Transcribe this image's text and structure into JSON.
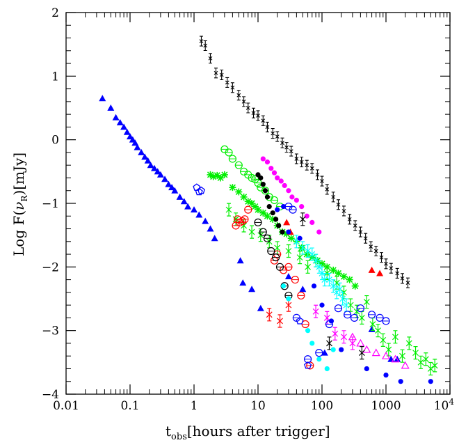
{
  "chart_data": {
    "type": "scatter",
    "xlabel": "t_obs[hours after trigger]",
    "xlabel_main": "t",
    "xlabel_sub": "obs",
    "xlabel_rest": "[hours after trigger]",
    "ylabel": "Log F(ν_R)[mJy]",
    "ylabel_pre": "Log F(",
    "ylabel_nu": "ν",
    "ylabel_sub": "R",
    "ylabel_post": ")[mJy]",
    "x_scale": "log",
    "xlim": [
      0.01,
      10000
    ],
    "ylim": [
      -4,
      2
    ],
    "x_ticks": [
      {
        "value": 0.01,
        "label": "0.01"
      },
      {
        "value": 0.1,
        "label": "0.1"
      },
      {
        "value": 1,
        "label": "1"
      },
      {
        "value": 10,
        "label": "10"
      },
      {
        "value": 100,
        "label": "100"
      },
      {
        "value": 1000,
        "label": "1000"
      },
      {
        "value": 10000,
        "label": "10",
        "sup": "4"
      }
    ],
    "y_ticks": [
      {
        "value": 2,
        "label": "2"
      },
      {
        "value": 1,
        "label": "1"
      },
      {
        "value": 0,
        "label": "0"
      },
      {
        "value": -1,
        "label": "−1"
      },
      {
        "value": -2,
        "label": "−2"
      },
      {
        "value": -3,
        "label": "−3"
      },
      {
        "value": -4,
        "label": "−4"
      }
    ],
    "grid": false,
    "series": [
      {
        "color": "#000000",
        "marker": "cross-small",
        "x": [
          1.3,
          1.5,
          1.8,
          2.2,
          2.7,
          3.3,
          4,
          5,
          6,
          7,
          8.5,
          10,
          12,
          14,
          17,
          20,
          24,
          28,
          33,
          40,
          48,
          58,
          70,
          85,
          100,
          120,
          150,
          180,
          220,
          270,
          330,
          400,
          480,
          580,
          700,
          850,
          1000,
          1200,
          1500,
          1800,
          2200
        ],
        "y": [
          1.55,
          1.48,
          1.28,
          1.05,
          1.02,
          0.9,
          0.82,
          0.7,
          0.6,
          0.5,
          0.42,
          0.38,
          0.3,
          0.2,
          0.1,
          0.05,
          -0.05,
          -0.12,
          -0.18,
          -0.3,
          -0.35,
          -0.4,
          -0.45,
          -0.55,
          -0.65,
          -0.78,
          -0.9,
          -1.02,
          -1.12,
          -1.25,
          -1.35,
          -1.45,
          -1.55,
          -1.68,
          -1.75,
          -1.85,
          -1.95,
          -2.02,
          -2.1,
          -2.18,
          -2.25
        ]
      },
      {
        "color": "#0000ff",
        "marker": "triangle",
        "x": [
          0.037,
          0.05,
          0.06,
          0.07,
          0.08,
          0.09,
          0.1,
          0.11,
          0.12,
          0.13,
          0.15,
          0.17,
          0.19,
          0.21,
          0.24,
          0.27,
          0.3,
          0.35,
          0.4,
          0.45,
          0.5,
          0.6,
          0.7,
          0.8,
          1,
          1.2,
          1.5,
          1.8,
          2.1,
          5.3,
          5.8,
          8,
          11,
          30,
          50,
          110,
          600,
          1200,
          1500
        ],
        "y": [
          0.65,
          0.5,
          0.35,
          0.27,
          0.2,
          0.12,
          0.05,
          0.0,
          -0.05,
          -0.12,
          -0.2,
          -0.27,
          -0.33,
          -0.4,
          -0.45,
          -0.5,
          -0.55,
          -0.62,
          -0.7,
          -0.75,
          -0.8,
          -0.9,
          -0.97,
          -1.05,
          -1.1,
          -1.18,
          -1.28,
          -1.4,
          -1.55,
          -1.9,
          -2.25,
          -2.35,
          -2.65,
          -2.15,
          -2.35,
          -3.35,
          -2.98,
          -3.45,
          -3.45
        ]
      },
      {
        "color": "#00ee00",
        "marker": "asterisk",
        "x": [
          1.8,
          2,
          2.3,
          2.6,
          3,
          4,
          5,
          6,
          7,
          8,
          9,
          10,
          12,
          14,
          17,
          20,
          24,
          28,
          33,
          40,
          48,
          58,
          70,
          85,
          100,
          120,
          150,
          180,
          220,
          270,
          330
        ],
        "y": [
          -0.55,
          -0.58,
          -0.56,
          -0.6,
          -0.55,
          -0.75,
          -0.82,
          -0.9,
          -0.97,
          -1.0,
          -1.05,
          -1.1,
          -1.15,
          -1.2,
          -1.25,
          -1.35,
          -1.45,
          -1.48,
          -1.55,
          -1.6,
          -1.7,
          -1.8,
          -1.85,
          -1.9,
          -1.95,
          -2.0,
          -2.05,
          -2.1,
          -2.15,
          -2.2,
          -2.3
        ]
      },
      {
        "color": "#00ee00",
        "marker": "x-bar",
        "x": [
          3.5,
          4.5,
          6,
          8,
          11,
          15,
          20,
          30,
          45,
          60,
          80,
          120,
          170,
          220,
          280,
          350,
          420,
          500,
          620,
          750,
          900,
          1100,
          1400,
          1800,
          2300,
          2900,
          3500,
          4200,
          5000,
          5800
        ],
        "y": [
          -1.1,
          -1.25,
          -1.35,
          -1.45,
          -1.5,
          -1.6,
          -1.7,
          -1.75,
          -1.85,
          -2.0,
          -1.9,
          -2.1,
          -2.25,
          -2.4,
          -2.6,
          -2.7,
          -2.8,
          -2.55,
          -2.9,
          -3.0,
          -3.15,
          -3.3,
          -3.1,
          -3.4,
          -3.2,
          -3.35,
          -3.5,
          -3.45,
          -3.6,
          -3.55
        ]
      },
      {
        "color": "#00ee00",
        "marker": "circle-open",
        "x": [
          3,
          3.5,
          4,
          5,
          6,
          7,
          8,
          9,
          10,
          11,
          13,
          15,
          18,
          22
        ],
        "y": [
          -0.15,
          -0.2,
          -0.3,
          -0.4,
          -0.5,
          -0.55,
          -0.6,
          -0.62,
          -0.68,
          -0.75,
          -0.8,
          -0.9,
          -0.95,
          -1.05
        ]
      },
      {
        "color": "#ff00ff",
        "marker": "circle-filled",
        "x": [
          12,
          14,
          16,
          18,
          20,
          23,
          26,
          30,
          34,
          40,
          48,
          58,
          70,
          90
        ],
        "y": [
          -0.3,
          -0.35,
          -0.45,
          -0.52,
          -0.6,
          -0.65,
          -0.72,
          -0.8,
          -0.9,
          -0.95,
          -1.05,
          -1.2,
          -1.3,
          -1.45
        ]
      },
      {
        "color": "#ff00ff",
        "marker": "triangle-open",
        "x": [
          300,
          400,
          500,
          700,
          1000,
          1400,
          2000
        ],
        "y": [
          -3.1,
          -3.2,
          -3.3,
          -3.35,
          -3.4,
          -3.45,
          -3.55
        ]
      },
      {
        "color": "#ff00ff",
        "marker": "x-bar",
        "x": [
          80,
          120,
          160,
          220,
          300
        ],
        "y": [
          -2.7,
          -2.8,
          -3.05,
          -3.1,
          -3.2
        ]
      },
      {
        "color": "#ff0000",
        "marker": "circle-open",
        "x": [
          4.5,
          4.8,
          5.2,
          5.7,
          6.2,
          7,
          18,
          20,
          25,
          30,
          38,
          47,
          55,
          65
        ],
        "y": [
          -1.35,
          -1.25,
          -1.3,
          -1.28,
          -1.25,
          -1.1,
          -1.9,
          -1.8,
          -2.05,
          -2.0,
          -2.2,
          -2.45,
          -2.9,
          -3.55
        ]
      },
      {
        "color": "#ff0000",
        "marker": "x-bar",
        "x": [
          15,
          22,
          30
        ],
        "y": [
          -2.75,
          -2.85,
          -2.6
        ]
      },
      {
        "color": "#ff0000",
        "marker": "triangle",
        "x": [
          28,
          32,
          600,
          800
        ],
        "y": [
          -1.3,
          -1.45,
          -2.05,
          -2.1
        ]
      },
      {
        "color": "#000000",
        "marker": "circle-filled",
        "x": [
          10,
          11,
          12,
          13,
          14,
          15,
          17,
          19,
          21,
          24
        ],
        "y": [
          -0.55,
          -0.6,
          -0.7,
          -0.8,
          -0.9,
          -1.05,
          -1.15,
          -1.25,
          -1.35,
          -1.45
        ]
      },
      {
        "color": "#000000",
        "marker": "circle-open",
        "x": [
          10,
          12,
          14,
          16,
          19,
          22,
          26,
          30
        ],
        "y": [
          -1.3,
          -1.45,
          -1.55,
          -1.75,
          -1.85,
          -2.0,
          -2.3,
          -2.45
        ]
      },
      {
        "color": "#000000",
        "marker": "x-bar",
        "x": [
          50,
          130,
          420
        ],
        "y": [
          -1.25,
          -3.2,
          -3.35
        ]
      },
      {
        "color": "#00ffff",
        "marker": "x-bar",
        "x": [
          40,
          50,
          60,
          70,
          80,
          90,
          100,
          110,
          130,
          150,
          170,
          190,
          210,
          240
        ],
        "y": [
          -1.6,
          -1.7,
          -1.75,
          -1.8,
          -1.9,
          -2.0,
          -2.1,
          -2.2,
          -2.2,
          -2.3,
          -2.4,
          -2.35,
          -2.5,
          -2.6
        ]
      },
      {
        "color": "#00ffff",
        "marker": "circle-filled",
        "x": [
          25,
          30,
          60,
          70,
          90,
          120,
          150
        ],
        "y": [
          -2.3,
          -2.5,
          -3.0,
          -3.2,
          -3.45,
          -3.6,
          -3.3
        ]
      },
      {
        "color": "#0000ff",
        "marker": "circle-open",
        "x": [
          30,
          35,
          40,
          60,
          90,
          130,
          180,
          250,
          320,
          400,
          600,
          800,
          1000
        ],
        "y": [
          -1.05,
          -1.1,
          -2.8,
          -3.45,
          -3.35,
          -2.9,
          -2.65,
          -2.75,
          -2.8,
          -2.65,
          -2.75,
          -2.8,
          -2.85
        ]
      },
      {
        "color": "#0000ff",
        "marker": "circle-filled",
        "x": [
          20,
          25,
          30,
          45,
          75,
          100,
          140,
          200,
          500,
          1000,
          1700,
          5000
        ],
        "y": [
          -1.1,
          -1.05,
          -1.45,
          -1.55,
          -2.3,
          -2.6,
          -2.85,
          -3.3,
          -3.6,
          -3.7,
          -3.8,
          -3.8
        ]
      },
      {
        "color": "#0000ff",
        "marker": "pentagon",
        "x": [
          1.1,
          1.2,
          1.3,
          45,
          60
        ],
        "y": [
          -0.75,
          -0.82,
          -0.8,
          -2.85,
          -3.55
        ]
      }
    ]
  }
}
